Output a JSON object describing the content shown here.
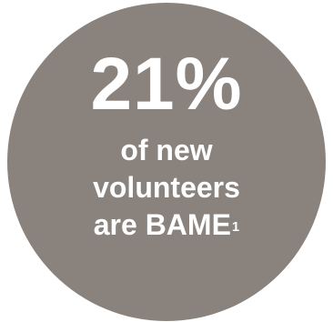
{
  "stat": {
    "value": "21%",
    "caption_lines": [
      "of new",
      "volunteers",
      "are BAME"
    ],
    "footnote_marker": "1"
  },
  "colors": {
    "circle": "#8a827c",
    "text": "#ffffff",
    "background": "#ffffff"
  }
}
